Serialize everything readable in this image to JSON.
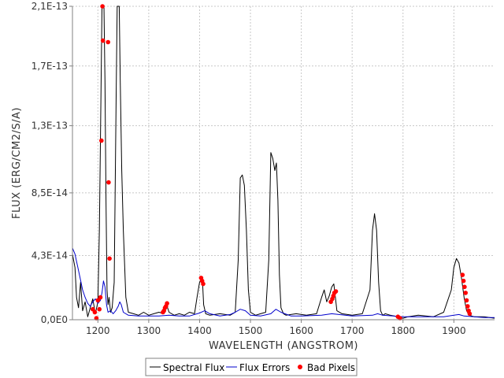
{
  "chart_data": {
    "type": "line",
    "xlabel": "WAVELENGTH (ANGSTROM)",
    "ylabel": "FLUX (ERG/CM2/S/A)",
    "xlim": [
      1150,
      1980
    ],
    "ylim": [
      0,
      2.1e-13
    ],
    "x_ticks": [
      1200,
      1300,
      1400,
      1500,
      1600,
      1700,
      1800,
      1900
    ],
    "x_tick_labels": [
      "1200",
      "1300",
      "1400",
      "1500",
      "1600",
      "1700",
      "1800",
      "1900"
    ],
    "y_ticks": [
      0,
      4.3e-14,
      8.5e-14,
      1.3e-13,
      1.7e-13,
      2.1e-13
    ],
    "y_tick_labels": [
      "0,0E0",
      "4,3E-14",
      "8,5E-14",
      "1,3E-13",
      "1,7E-13",
      "2,1E-13"
    ],
    "grid": true,
    "legend_position": "bottom",
    "series": [
      {
        "name": "Spectral Flux",
        "color": "#000000",
        "x": [
          1150,
          1155,
          1158,
          1162,
          1166,
          1170,
          1175,
          1180,
          1185,
          1190,
          1195,
          1200,
          1203,
          1206,
          1208,
          1210,
          1212,
          1214,
          1216,
          1218,
          1220,
          1222,
          1225,
          1228,
          1232,
          1236,
          1238,
          1240,
          1242,
          1244,
          1247,
          1250,
          1255,
          1260,
          1270,
          1280,
          1290,
          1300,
          1310,
          1320,
          1330,
          1335,
          1340,
          1350,
          1360,
          1370,
          1380,
          1390,
          1395,
          1400,
          1403,
          1406,
          1408,
          1412,
          1420,
          1440,
          1460,
          1470,
          1476,
          1480,
          1484,
          1488,
          1492,
          1496,
          1500,
          1510,
          1520,
          1530,
          1536,
          1540,
          1544,
          1548,
          1551,
          1554,
          1557,
          1560,
          1565,
          1570,
          1590,
          1610,
          1630,
          1640,
          1645,
          1650,
          1655,
          1660,
          1664,
          1667,
          1670,
          1680,
          1700,
          1720,
          1735,
          1740,
          1744,
          1748,
          1752,
          1756,
          1760,
          1765,
          1775,
          1790,
          1800,
          1810,
          1830,
          1860,
          1880,
          1895,
          1900,
          1905,
          1910,
          1915,
          1920,
          1925,
          1930,
          1940,
          1960,
          1980
        ],
        "y": [
          4.4e-14,
          3.5e-14,
          1.5e-14,
          8e-15,
          2.5e-14,
          6e-15,
          1.2e-14,
          2e-15,
          8e-15,
          1.4e-14,
          4e-15,
          1.2e-14,
          6e-14,
          1.5e-13,
          2.1e-13,
          2.1e-13,
          2.1e-13,
          1.6e-13,
          8e-14,
          2e-14,
          1e-14,
          1.5e-14,
          5e-15,
          8e-15,
          2.5e-14,
          1.5e-13,
          2.1e-13,
          2.1e-13,
          2.1e-13,
          1.6e-13,
          1e-13,
          6e-14,
          1.5e-14,
          5e-15,
          4e-15,
          3e-15,
          5e-15,
          3e-15,
          4e-15,
          5e-15,
          4e-15,
          1e-14,
          5e-15,
          3e-15,
          4e-15,
          3e-15,
          5e-15,
          4e-15,
          1.5e-14,
          2.5e-14,
          2.7e-14,
          2.4e-14,
          1e-14,
          4e-15,
          3e-15,
          4e-15,
          3e-15,
          5e-15,
          4e-14,
          9.5e-14,
          9.7e-14,
          9e-14,
          6e-14,
          2e-14,
          5e-15,
          3e-15,
          4e-15,
          5e-15,
          4e-14,
          1.12e-13,
          1.08e-13,
          1e-13,
          1.05e-13,
          8e-14,
          3e-14,
          8e-15,
          4e-15,
          3e-15,
          4e-15,
          3e-15,
          4e-15,
          1.5e-14,
          2e-14,
          1.2e-14,
          1.6e-14,
          2.2e-14,
          2.4e-14,
          1.5e-14,
          6e-15,
          4e-15,
          3e-15,
          4e-15,
          2e-14,
          6e-14,
          7.1e-14,
          6e-14,
          2.5e-14,
          6e-15,
          3e-15,
          4e-15,
          3e-15,
          2e-15,
          1e-15,
          2e-15,
          3e-15,
          2e-15,
          5e-15,
          2e-14,
          3.5e-14,
          4.1e-14,
          3.8e-14,
          2.8e-14,
          1.5e-14,
          6e-15,
          3e-15,
          2e-15,
          2e-15,
          1e-15
        ]
      },
      {
        "name": "Flux Errors",
        "color": "#0000cc",
        "x": [
          1150,
          1155,
          1160,
          1165,
          1170,
          1175,
          1180,
          1185,
          1190,
          1195,
          1200,
          1205,
          1208,
          1211,
          1214,
          1217,
          1220,
          1225,
          1230,
          1235,
          1240,
          1243,
          1246,
          1250,
          1260,
          1280,
          1300,
          1320,
          1340,
          1360,
          1380,
          1400,
          1410,
          1420,
          1440,
          1460,
          1470,
          1480,
          1490,
          1500,
          1520,
          1540,
          1550,
          1560,
          1580,
          1600,
          1640,
          1660,
          1700,
          1740,
          1750,
          1760,
          1800,
          1840,
          1880,
          1900,
          1910,
          1920,
          1940,
          1960,
          1980
        ],
        "y": [
          4.8e-14,
          4.4e-14,
          3.6e-14,
          2.8e-14,
          2e-14,
          1.5e-14,
          1.1e-14,
          9e-15,
          1.2e-14,
          1.4e-14,
          1.1e-14,
          1.3e-14,
          1.8e-14,
          2.6e-14,
          2.2e-14,
          1e-14,
          5e-15,
          6e-15,
          4e-15,
          6e-15,
          9e-15,
          1.2e-14,
          1e-14,
          5e-15,
          3e-15,
          2.5e-15,
          2.5e-15,
          2.5e-15,
          3e-15,
          2.5e-15,
          2.5e-15,
          4.5e-15,
          6e-15,
          4e-15,
          2.5e-15,
          3.5e-15,
          5e-15,
          7e-15,
          6e-15,
          3e-15,
          2.5e-15,
          4e-15,
          7e-15,
          5e-15,
          2.5e-15,
          2.5e-15,
          3e-15,
          4e-15,
          2.5e-15,
          3e-15,
          4e-15,
          3e-15,
          2e-15,
          2e-15,
          2e-15,
          3e-15,
          3.5e-15,
          2.5e-15,
          2e-15,
          1.5e-15,
          1.5e-15
        ]
      },
      {
        "name": "Bad Pixels",
        "color": "#ff0000",
        "x": [
          1190,
          1194,
          1197,
          1200,
          1203,
          1205,
          1207,
          1209,
          1210,
          1220,
          1221,
          1223,
          1328,
          1330,
          1332,
          1334,
          1336,
          1403,
          1405,
          1407,
          1658,
          1661,
          1663,
          1665,
          1668,
          1790,
          1794,
          1917,
          1919,
          1921,
          1923,
          1925,
          1927,
          1929,
          1931
        ],
        "y": [
          7e-15,
          5e-15,
          1e-15,
          1.3e-14,
          7e-15,
          1.5e-14,
          1.2e-13,
          2.13e-13,
          1.87e-13,
          1.86e-13,
          9.2e-14,
          4.1e-14,
          5e-15,
          6e-15,
          8e-15,
          9e-15,
          1.1e-14,
          2.8e-14,
          2.6e-14,
          2.4e-14,
          1.2e-14,
          1.4e-14,
          1.6e-14,
          1.8e-14,
          1.9e-14,
          2e-15,
          1e-15,
          3e-14,
          2.6e-14,
          2.2e-14,
          1.8e-14,
          1.3e-14,
          9e-15,
          6e-15,
          4e-15
        ]
      }
    ]
  }
}
